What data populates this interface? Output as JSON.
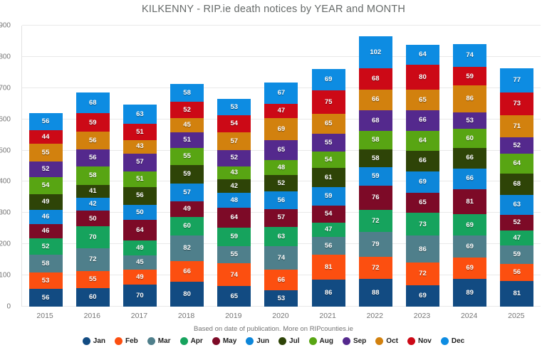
{
  "title": "KILKENNY - RIP.ie death notices by YEAR and MONTH",
  "footer": "Based on date of publication. More on RIPcounties.ie",
  "chart_data": {
    "type": "bar",
    "stacked": true,
    "title": "KILKENNY - RIP.ie death notices by YEAR and MONTH",
    "xlabel": "",
    "ylabel": "",
    "ylim": [
      0,
      900
    ],
    "yticks": [
      0,
      100,
      200,
      300,
      400,
      500,
      600,
      700,
      800,
      900
    ],
    "grid": true,
    "legend_position": "bottom",
    "categories": [
      "2015",
      "2016",
      "2017",
      "2018",
      "2019",
      "2020",
      "2021",
      "2022",
      "2023",
      "2024",
      "2025"
    ],
    "series": [
      {
        "name": "Jan",
        "color": "#124b82",
        "values": [
          56,
          60,
          70,
          80,
          65,
          53,
          86,
          88,
          69,
          89,
          81
        ]
      },
      {
        "name": "Feb",
        "color": "#fc4f10",
        "values": [
          53,
          55,
          49,
          66,
          74,
          66,
          81,
          72,
          72,
          69,
          56
        ]
      },
      {
        "name": "Mar",
        "color": "#4f7f8b",
        "values": [
          58,
          72,
          45,
          82,
          55,
          74,
          56,
          79,
          86,
          69,
          59
        ]
      },
      {
        "name": "Apr",
        "color": "#16a35d",
        "values": [
          52,
          70,
          49,
          60,
          59,
          63,
          47,
          72,
          73,
          69,
          47
        ]
      },
      {
        "name": "May",
        "color": "#7d0a27",
        "values": [
          46,
          50,
          64,
          49,
          64,
          57,
          54,
          76,
          65,
          81,
          52
        ]
      },
      {
        "name": "Jun",
        "color": "#0d86d9",
        "values": [
          46,
          42,
          50,
          57,
          48,
          56,
          59,
          59,
          69,
          66,
          63
        ]
      },
      {
        "name": "Jul",
        "color": "#2e4407",
        "values": [
          49,
          41,
          56,
          59,
          42,
          52,
          61,
          58,
          66,
          66,
          68
        ]
      },
      {
        "name": "Aug",
        "color": "#58a513",
        "values": [
          54,
          58,
          51,
          55,
          43,
          48,
          54,
          58,
          64,
          60,
          64
        ]
      },
      {
        "name": "Sep",
        "color": "#54298d",
        "values": [
          52,
          56,
          57,
          51,
          52,
          65,
          55,
          68,
          66,
          53,
          52
        ]
      },
      {
        "name": "Oct",
        "color": "#d2810e",
        "values": [
          55,
          56,
          43,
          45,
          57,
          69,
          65,
          66,
          65,
          86,
          71
        ]
      },
      {
        "name": "Nov",
        "color": "#cc0916",
        "values": [
          44,
          59,
          51,
          52,
          54,
          47,
          75,
          68,
          80,
          59,
          73
        ]
      },
      {
        "name": "Dec",
        "color": "#0d8ce2",
        "values": [
          56,
          68,
          63,
          58,
          53,
          67,
          69,
          102,
          64,
          74,
          77
        ]
      }
    ]
  }
}
